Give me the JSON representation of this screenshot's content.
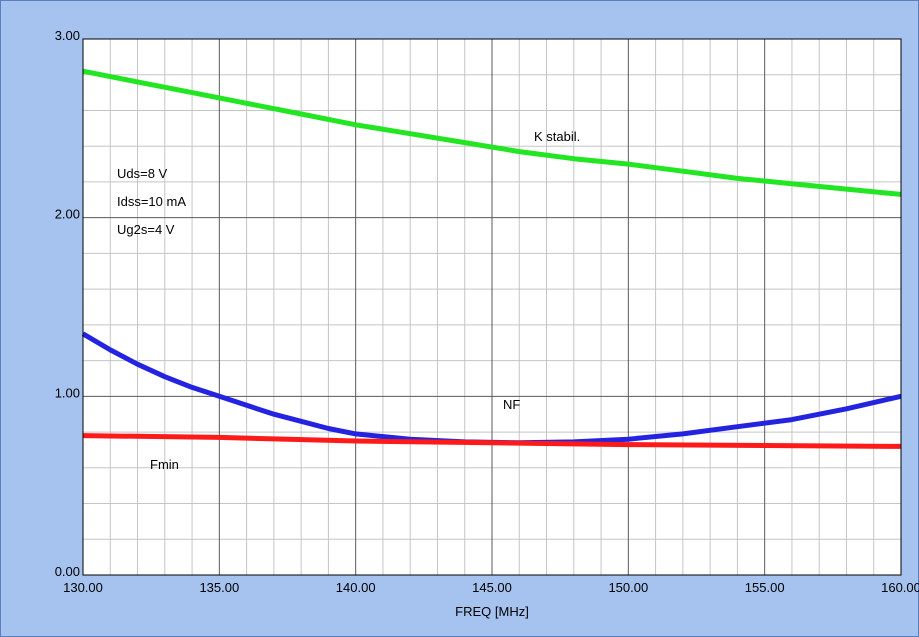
{
  "chart_data": {
    "type": "line",
    "xlabel": "FREQ [MHz]",
    "ylabel": "",
    "xlim": [
      130,
      160
    ],
    "ylim": [
      0,
      3
    ],
    "x_ticks": [
      "130.00",
      "135.00",
      "140.00",
      "145.00",
      "150.00",
      "155.00",
      "160.00"
    ],
    "y_ticks": [
      "0.00",
      "1.00",
      "2.00",
      "3.00"
    ],
    "x_minor_step": 1,
    "y_minor_step": 0.2,
    "grid": true,
    "annotations": [
      "Uds=8 V",
      "Idss=10 mA",
      "Ug2s=4 V"
    ],
    "series": [
      {
        "name": "K stabil.",
        "color": "#22e622",
        "x": [
          130,
          132,
          134,
          136,
          138,
          140,
          142,
          144,
          146,
          148,
          150,
          152,
          154,
          156,
          158,
          160
        ],
        "y": [
          2.82,
          2.76,
          2.7,
          2.64,
          2.58,
          2.52,
          2.47,
          2.42,
          2.37,
          2.33,
          2.3,
          2.26,
          2.22,
          2.19,
          2.16,
          2.13
        ]
      },
      {
        "name": "NF",
        "color": "#2424e0",
        "x": [
          130,
          131,
          132,
          133,
          134,
          135,
          136,
          137,
          138,
          139,
          140,
          142,
          144,
          146,
          148,
          150,
          152,
          154,
          156,
          158,
          160
        ],
        "y": [
          1.35,
          1.26,
          1.18,
          1.11,
          1.05,
          1.0,
          0.95,
          0.9,
          0.86,
          0.82,
          0.79,
          0.76,
          0.745,
          0.74,
          0.745,
          0.76,
          0.79,
          0.83,
          0.87,
          0.93,
          1.0
        ]
      },
      {
        "name": "Fmin",
        "color": "#ff1a1a",
        "x": [
          130,
          135,
          140,
          145,
          150,
          155,
          160
        ],
        "y": [
          0.78,
          0.77,
          0.75,
          0.74,
          0.73,
          0.725,
          0.72
        ]
      }
    ]
  }
}
